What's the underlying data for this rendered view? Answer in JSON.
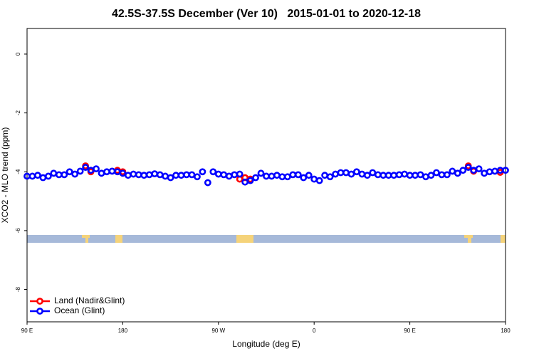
{
  "chart_data": {
    "type": "scatter",
    "title": "42.5S-37.5S December (Ver 10)   2015-01-01 to 2020-12-18",
    "x_label": "Longitude (deg E)",
    "y_label": "XCO2 - MLO trend (ppm)",
    "xlim": [
      90,
      540
    ],
    "ylim": [
      -9.1,
      0.87
    ],
    "xticks": [
      {
        "value": 90,
        "label": "90 E"
      },
      180,
      {
        "value": 270,
        "label": "90 W"
      },
      {
        "value": 360,
        "label": "0"
      },
      {
        "value": 450,
        "label": "90 E"
      },
      {
        "value": 540,
        "label": "180"
      }
    ],
    "yticks": [
      0,
      -2,
      -4,
      -6,
      -8
    ],
    "legend": "bottom-left",
    "series": [
      {
        "name": "Land (Nadir&Glint)",
        "color": "#ff0000",
        "x": [
          145,
          150,
          175,
          180,
          290,
          295,
          300,
          505,
          510,
          535
        ],
        "values": [
          -3.8,
          -4.0,
          -3.95,
          -4.0,
          -4.25,
          -4.2,
          -4.25,
          -3.8,
          -3.98,
          -4.02
        ]
      },
      {
        "name": "Ocean (Glint)",
        "color": "#0000ff",
        "x": [
          90,
          95,
          100,
          105,
          110,
          115,
          120,
          125,
          130,
          135,
          140,
          145,
          150,
          155,
          160,
          165,
          170,
          175,
          180,
          185,
          190,
          195,
          200,
          205,
          210,
          215,
          220,
          225,
          230,
          235,
          240,
          245,
          250,
          255,
          260,
          265,
          270,
          275,
          280,
          285,
          290,
          295,
          300,
          305,
          310,
          315,
          320,
          325,
          330,
          335,
          340,
          345,
          350,
          355,
          360,
          365,
          370,
          375,
          380,
          385,
          390,
          395,
          400,
          405,
          410,
          415,
          420,
          425,
          430,
          435,
          440,
          445,
          450,
          455,
          460,
          465,
          470,
          475,
          480,
          485,
          490,
          495,
          500,
          505,
          510,
          515,
          520,
          525,
          530,
          535,
          540
        ],
        "values": [
          -4.15,
          -4.15,
          -4.12,
          -4.2,
          -4.15,
          -4.05,
          -4.1,
          -4.1,
          -4.0,
          -4.08,
          -3.98,
          -3.85,
          -3.95,
          -3.9,
          -4.05,
          -4.0,
          -3.98,
          -4.0,
          -4.05,
          -4.12,
          -4.08,
          -4.1,
          -4.12,
          -4.1,
          -4.07,
          -4.1,
          -4.15,
          -4.2,
          -4.12,
          -4.12,
          -4.1,
          -4.1,
          -4.17,
          -4.0,
          -4.37,
          -4.0,
          -4.08,
          -4.1,
          -4.15,
          -4.1,
          -4.08,
          -4.35,
          -4.3,
          -4.2,
          -4.05,
          -4.15,
          -4.15,
          -4.12,
          -4.17,
          -4.17,
          -4.1,
          -4.1,
          -4.2,
          -4.12,
          -4.25,
          -4.3,
          -4.12,
          -4.17,
          -4.08,
          -4.03,
          -4.03,
          -4.08,
          -4.0,
          -4.08,
          -4.12,
          -4.03,
          -4.1,
          -4.12,
          -4.12,
          -4.12,
          -4.1,
          -4.08,
          -4.12,
          -4.12,
          -4.1,
          -4.17,
          -4.12,
          -4.03,
          -4.1,
          -4.1,
          -3.98,
          -4.05,
          -3.95,
          -3.85,
          -3.95,
          -3.9,
          -4.05,
          -4.0,
          -3.98,
          -3.95,
          -3.95
        ]
      }
    ]
  }
}
